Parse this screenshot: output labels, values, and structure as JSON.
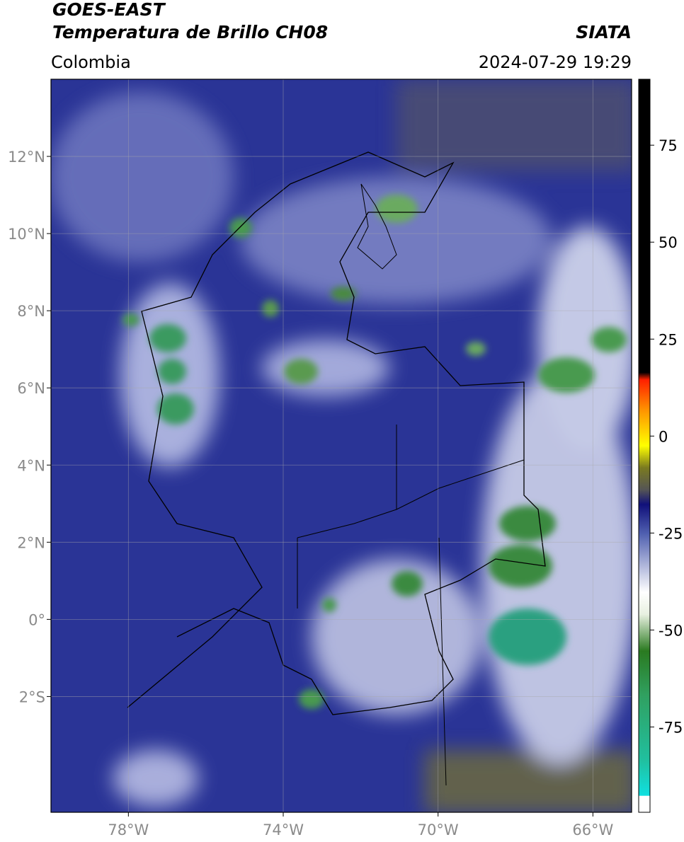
{
  "header": {
    "satellite": "GOES-EAST",
    "product": "Temperatura de Brillo CH08",
    "region": "Colombia",
    "source": "SIATA",
    "timestamp": "2024-07-29 19:29"
  },
  "map": {
    "xlim": [
      -80,
      -65
    ],
    "ylim": [
      -5,
      14
    ],
    "xticks": [
      {
        "value": -78,
        "label": "78°W"
      },
      {
        "value": -74,
        "label": "74°W"
      },
      {
        "value": -70,
        "label": "70°W"
      },
      {
        "value": -66,
        "label": "66°W"
      }
    ],
    "yticks": [
      {
        "value": 12,
        "label": "12°N"
      },
      {
        "value": 10,
        "label": "10°N"
      },
      {
        "value": 8,
        "label": "8°N"
      },
      {
        "value": 6,
        "label": "6°N"
      },
      {
        "value": 4,
        "label": "4°N"
      },
      {
        "value": 2,
        "label": "2°N"
      },
      {
        "value": 0,
        "label": "0°"
      },
      {
        "value": -2,
        "label": "2°S"
      }
    ],
    "grid": true
  },
  "colorbar": {
    "lim": [
      -97,
      92
    ],
    "ticks": [
      75,
      50,
      25,
      0,
      -25,
      -50,
      -75
    ]
  }
}
